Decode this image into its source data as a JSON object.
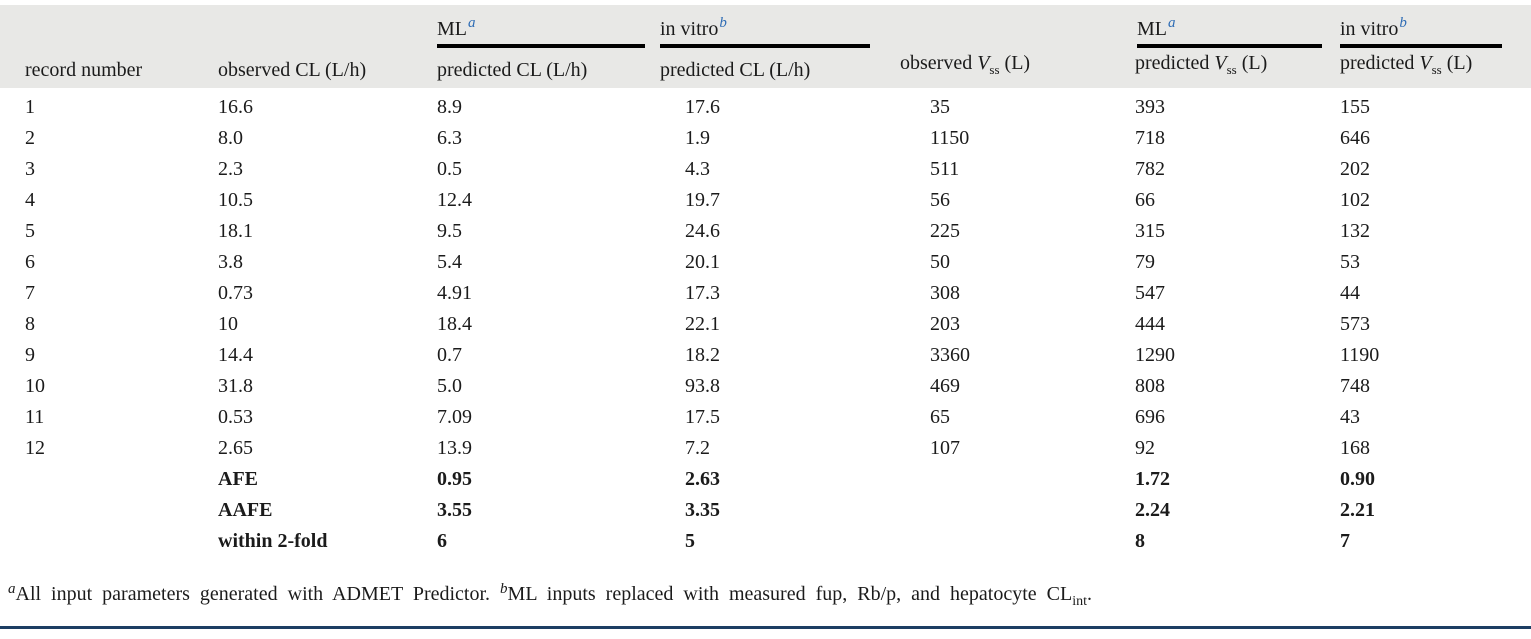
{
  "colors": {
    "header_bg": "#e8e8e6",
    "text": "#1b1b1b",
    "superscript_blue": "#2e6cb5",
    "bottom_rule": "#1d3e63",
    "spanner_line": "#000000"
  },
  "header": {
    "spanners": {
      "ml_cl": {
        "label": "ML",
        "sup": "a"
      },
      "invitro_cl": {
        "label": "in vitro",
        "sup": "b"
      },
      "ml_vss": {
        "label": "ML",
        "sup": "a"
      },
      "invitro_vss": {
        "label": "in vitro",
        "sup": "b"
      }
    },
    "columns": {
      "record": "record number",
      "observed_cl": "observed CL (L/h)",
      "predicted_cl_ml": "predicted CL (L/h)",
      "predicted_cl_invitro": "predicted CL (L/h)",
      "observed_vss": {
        "prefix": "observed ",
        "var": "V",
        "sub": "ss",
        "unit": " (L)"
      },
      "predicted_vss_ml": {
        "prefix": "predicted ",
        "var": "V",
        "sub": "ss",
        "unit": " (L)"
      },
      "predicted_vss_invitro": {
        "prefix": "predicted ",
        "var": "V",
        "sub": "ss",
        "unit": " (L)"
      }
    }
  },
  "chart_data": {
    "type": "table",
    "title": "",
    "categories": [
      "record number",
      "observed CL (L/h)",
      "ML predicted CL (L/h)",
      "in vitro predicted CL (L/h)",
      "observed Vss (L)",
      "ML predicted Vss (L)",
      "in vitro predicted Vss (L)"
    ],
    "rows": [
      [
        "1",
        "16.6",
        "8.9",
        "17.6",
        "35",
        "393",
        "155"
      ],
      [
        "2",
        "8.0",
        "6.3",
        "1.9",
        "1150",
        "718",
        "646"
      ],
      [
        "3",
        "2.3",
        "0.5",
        "4.3",
        "511",
        "782",
        "202"
      ],
      [
        "4",
        "10.5",
        "12.4",
        "19.7",
        "56",
        "66",
        "102"
      ],
      [
        "5",
        "18.1",
        "9.5",
        "24.6",
        "225",
        "315",
        "132"
      ],
      [
        "6",
        "3.8",
        "5.4",
        "20.1",
        "50",
        "79",
        "53"
      ],
      [
        "7",
        "0.73",
        "4.91",
        "17.3",
        "308",
        "547",
        "44"
      ],
      [
        "8",
        "10",
        "18.4",
        "22.1",
        "203",
        "444",
        "573"
      ],
      [
        "9",
        "14.4",
        "0.7",
        "18.2",
        "3360",
        "1290",
        "1190"
      ],
      [
        "10",
        "31.8",
        "5.0",
        "93.8",
        "469",
        "808",
        "748"
      ],
      [
        "11",
        "0.53",
        "7.09",
        "17.5",
        "65",
        "696",
        "43"
      ],
      [
        "12",
        "2.65",
        "13.9",
        "7.2",
        "107",
        "92",
        "168"
      ]
    ],
    "summary_rows": [
      {
        "label": "AFE",
        "values": [
          "0.95",
          "2.63",
          "1.72",
          "0.90"
        ]
      },
      {
        "label": "AAFE",
        "values": [
          "3.55",
          "3.35",
          "2.24",
          "2.21"
        ]
      },
      {
        "label": "within 2-fold",
        "values": [
          "6",
          "5",
          "8",
          "7"
        ]
      }
    ]
  },
  "footnote": {
    "sup_a": "a",
    "text_a": "All input parameters generated with ADMET Predictor. ",
    "sup_b": "b",
    "text_b": "ML inputs replaced with measured fup, Rb/p, and hepatocyte CL",
    "sub_int": "int",
    "period": "."
  }
}
